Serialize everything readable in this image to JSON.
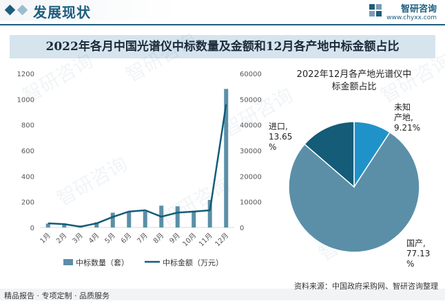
{
  "header": {
    "title": "发展现状",
    "logo_name": "智研咨询",
    "logo_url": "www.chyxx.com",
    "accent_color": "#1d5d7e"
  },
  "banner_title": "2022年各月中国光谱仪中标数量及金额和12月各产地中标金额占比",
  "footer": {
    "left": "精品报告 · 专项定制 · 品质服务",
    "source": "资料来源：中国政府采购网、智研咨询整理"
  },
  "watermark": "智研咨询",
  "chart_data": [
    {
      "type": "bar",
      "categories": [
        "1月",
        "2月",
        "3月",
        "4月",
        "5月",
        "6月",
        "7月",
        "8月",
        "9月",
        "10月",
        "11月",
        "12月"
      ],
      "series": [
        {
          "name": "中标数量（套）",
          "kind": "bar",
          "axis": "left",
          "color": "#5b8fa8",
          "values": [
            30,
            30,
            15,
            40,
            115,
            120,
            125,
            170,
            165,
            130,
            215,
            1080
          ]
        },
        {
          "name": "中标金额（万元）",
          "kind": "line",
          "axis": "right",
          "color": "#145c78",
          "values": [
            1600,
            1300,
            300,
            1600,
            4100,
            6200,
            6700,
            4200,
            5800,
            6200,
            6700,
            48000
          ]
        }
      ],
      "y_left": {
        "min": 0,
        "max": 1200,
        "ticks": [
          0,
          200,
          400,
          600,
          800,
          1000,
          1200
        ]
      },
      "y_right": {
        "min": 0,
        "max": 60000,
        "ticks": [
          0,
          10000,
          20000,
          30000,
          40000,
          50000,
          60000
        ]
      },
      "legend_position": "bottom"
    },
    {
      "type": "pie",
      "title_lines": [
        "2022年12月各产地光谱仪中",
        "标金额占比"
      ],
      "slices": [
        {
          "label_lines": [
            "未知",
            "产地,",
            "9.21%"
          ],
          "value": 9.21,
          "color": "#1f93c9"
        },
        {
          "label_lines": [
            "国产,",
            "77.13",
            "%"
          ],
          "value": 77.13,
          "color": "#5b8fa8"
        },
        {
          "label_lines": [
            "进口,",
            "13.65",
            "%"
          ],
          "value": 13.65,
          "color": "#145c78"
        }
      ]
    }
  ]
}
